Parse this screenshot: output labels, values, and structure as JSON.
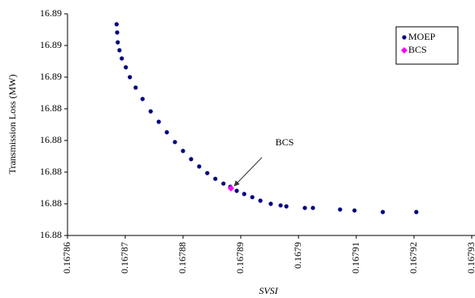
{
  "chart_data": {
    "type": "scatter",
    "xlabel": "SVSI",
    "ylabel": "Transmission Loss (MW)",
    "xlim": [
      0.16786,
      0.16793
    ],
    "xticks": [
      0.16786,
      0.16787,
      0.16788,
      0.16789,
      0.1679,
      0.16791,
      0.16792,
      0.16793
    ],
    "ylim": [
      16.88,
      16.887
    ],
    "yticks": [
      {
        "value": 16.88,
        "label": "16.88"
      },
      {
        "value": 16.881,
        "label": "16.88"
      },
      {
        "value": 16.882,
        "label": "16.88"
      },
      {
        "value": 16.883,
        "label": "16.88"
      },
      {
        "value": 16.884,
        "label": "16.88"
      },
      {
        "value": 16.885,
        "label": "16.89"
      },
      {
        "value": 16.886,
        "label": "16.89"
      },
      {
        "value": 16.887,
        "label": "16.89"
      }
    ],
    "grid": false,
    "legend": "upper right",
    "annotation": "BCS",
    "series": [
      {
        "name": "MOEP",
        "color": "#000080",
        "marker": "circle",
        "x": [
          0.1678685,
          0.1678686,
          0.1678687,
          0.167869,
          0.1678694,
          0.1678701,
          0.1678708,
          0.1678718,
          0.167873,
          0.1678744,
          0.1678758,
          0.1678772,
          0.1678786,
          0.16788,
          0.1678814,
          0.1678828,
          0.1678842,
          0.1678856,
          0.167887,
          0.1678882,
          0.1678893,
          0.1678906,
          0.167892,
          0.1678934,
          0.1678952,
          0.1678969,
          0.1678979,
          0.1679011,
          0.1679025,
          0.1679072,
          0.1679097,
          0.1679146,
          0.1679204
        ],
        "values": [
          16.88667,
          16.88641,
          16.8861,
          16.88585,
          16.88559,
          16.88531,
          16.885,
          16.88467,
          16.88431,
          16.88392,
          16.88359,
          16.88326,
          16.88295,
          16.88267,
          16.88241,
          16.88218,
          16.88197,
          16.88179,
          16.88164,
          16.88154,
          16.88141,
          16.88131,
          16.88121,
          16.8811,
          16.881,
          16.88095,
          16.88092,
          16.88087,
          16.88087,
          16.88082,
          16.88079,
          16.88074,
          16.88074
        ]
      },
      {
        "name": "BCS",
        "color": "#ff00ff",
        "marker": "diamond",
        "x": [
          0.1678883
        ],
        "values": [
          16.88149
        ]
      }
    ]
  }
}
